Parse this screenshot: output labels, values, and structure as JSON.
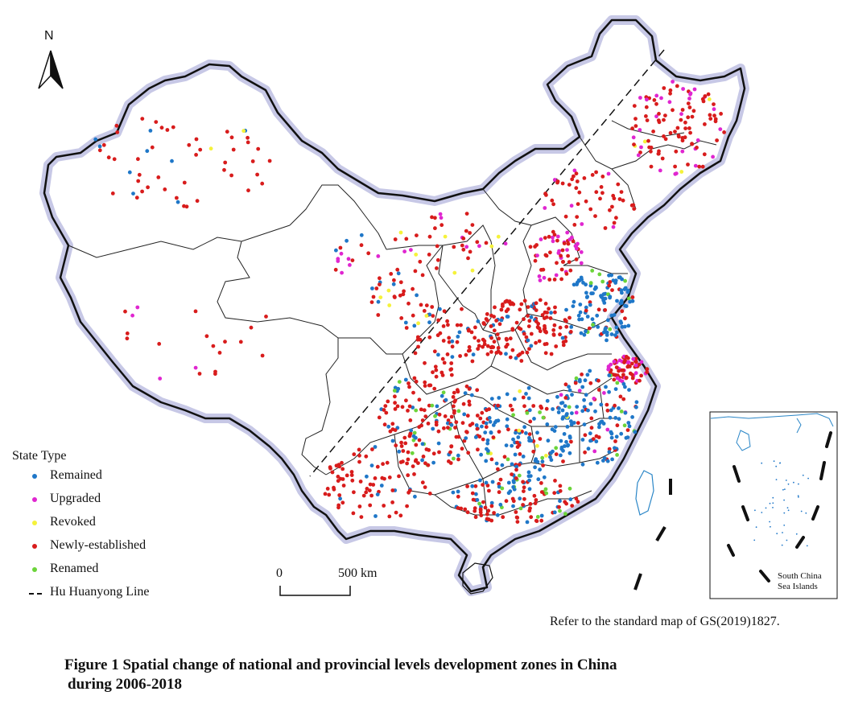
{
  "north_label": "N",
  "legend": {
    "title": "State Type",
    "items": [
      {
        "label": "Remained",
        "color": "#1f77c8"
      },
      {
        "label": "Upgraded",
        "color": "#e026d0"
      },
      {
        "label": "Revoked",
        "color": "#f5f23a"
      },
      {
        "label": "Newly-established",
        "color": "#d81c1c"
      },
      {
        "label": "Renamed",
        "color": "#6cd43a"
      }
    ],
    "line_label": "Hu Huanyong Line"
  },
  "scale_bar": {
    "start": "0",
    "end": "500 km"
  },
  "inset_label": [
    "South China",
    "Sea Islands"
  ],
  "reference_note": "Refer to the standard map of GS(2019)1827.",
  "caption": {
    "line1": "Figure 1  Spatial change of national and provincial levels development zones in China",
    "line2": "during 2006-2018"
  },
  "colors": {
    "border_halo": "#c7c8e6",
    "boundary": "#111111",
    "water": "#2a86c7"
  }
}
